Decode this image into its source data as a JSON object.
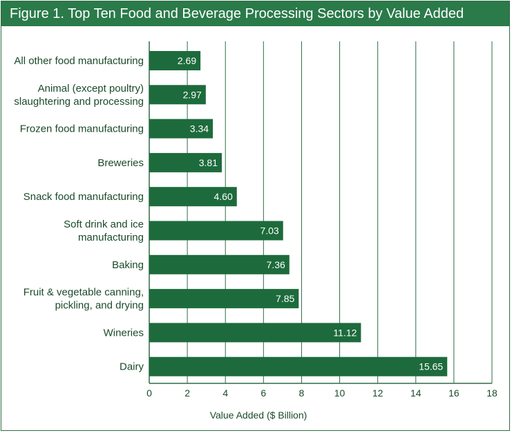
{
  "chart_data": {
    "type": "bar",
    "orientation": "horizontal",
    "title": "Figure 1. Top Ten Food and Beverage Processing Sectors by Value Added",
    "xlabel": "Value Added ($ Billion)",
    "ylabel": "",
    "xlim": [
      0,
      18
    ],
    "ticks": [
      0,
      2,
      4,
      6,
      8,
      10,
      12,
      14,
      16,
      18
    ],
    "grid": true,
    "categories": [
      [
        "All other food manufacturing"
      ],
      [
        "Animal (except poultry)",
        "slaughtering and processing"
      ],
      [
        "Frozen food manufacturing"
      ],
      [
        "Breweries"
      ],
      [
        "Snack food manufacturing"
      ],
      [
        "Soft drink and ice",
        "manufacturing"
      ],
      [
        "Baking"
      ],
      [
        "Fruit & vegetable canning,",
        "pickling, and drying"
      ],
      [
        "Wineries"
      ],
      [
        "Dairy"
      ]
    ],
    "values": [
      2.69,
      2.97,
      3.34,
      3.81,
      4.6,
      7.03,
      7.36,
      7.85,
      11.12,
      15.65
    ],
    "value_labels": [
      "2.69",
      "2.97",
      "3.34",
      "3.81",
      "4.60",
      "7.03",
      "7.36",
      "7.85",
      "11.12",
      "15.65"
    ],
    "colors": {
      "bar": "#1d6b3c",
      "title_bg": "#2a7a4a",
      "grid": "#2f6b45",
      "text": "#1a4a2a"
    }
  }
}
